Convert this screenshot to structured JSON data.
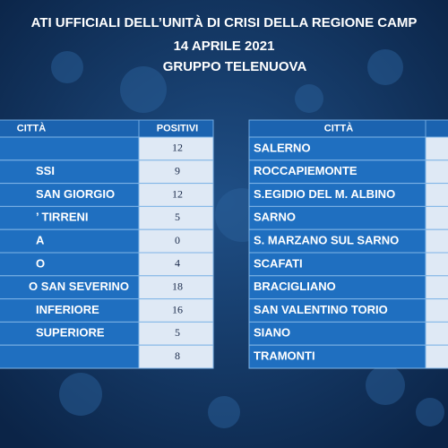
{
  "title": {
    "lines": [
      "ATI UFFICIALI DELL’UNITÀ DI CRISI DELLA REGIONE CAMP",
      "14 APRILE 2021",
      "GRUPPO TELENUOVA"
    ]
  },
  "left_table": {
    "headers": [
      "CITTÀ",
      "POSITIVI"
    ],
    "rows": [
      {
        "positivi": 12
      },
      {
        "city": "SSI",
        "positivi": 9
      },
      {
        "city": "SAN GIORGIO",
        "positivi": 12
      },
      {
        "city": "’ TIRRENI",
        "positivi": 5
      },
      {
        "city": "A",
        "positivi": 0
      },
      {
        "city": "O",
        "positivi": 4
      },
      {
        "city": "O SAN SEVERINO",
        "positivi": 18
      },
      {
        "city": "INFERIORE",
        "positivi": 16
      },
      {
        "city": "SUPERIORE",
        "positivi": 5
      },
      {
        "positivi": 8
      }
    ]
  },
  "right_table": {
    "headers": [
      "CITTÀ"
    ],
    "rows": [
      {
        "city": "SALERNO"
      },
      {
        "city": "ROCCAPIEMONTE"
      },
      {
        "city": "S.EGIDIO DEL M. ALBINO"
      },
      {
        "city": "SARNO"
      },
      {
        "city": "S. MARZANO SUL SARNO"
      },
      {
        "city": "SCAFATI"
      },
      {
        "city": "BRACIGLIANO"
      },
      {
        "city": "SAN VALENTINO TORIO"
      },
      {
        "city": "SIANO"
      },
      {
        "city": "TRAMONTI"
      }
    ]
  }
}
